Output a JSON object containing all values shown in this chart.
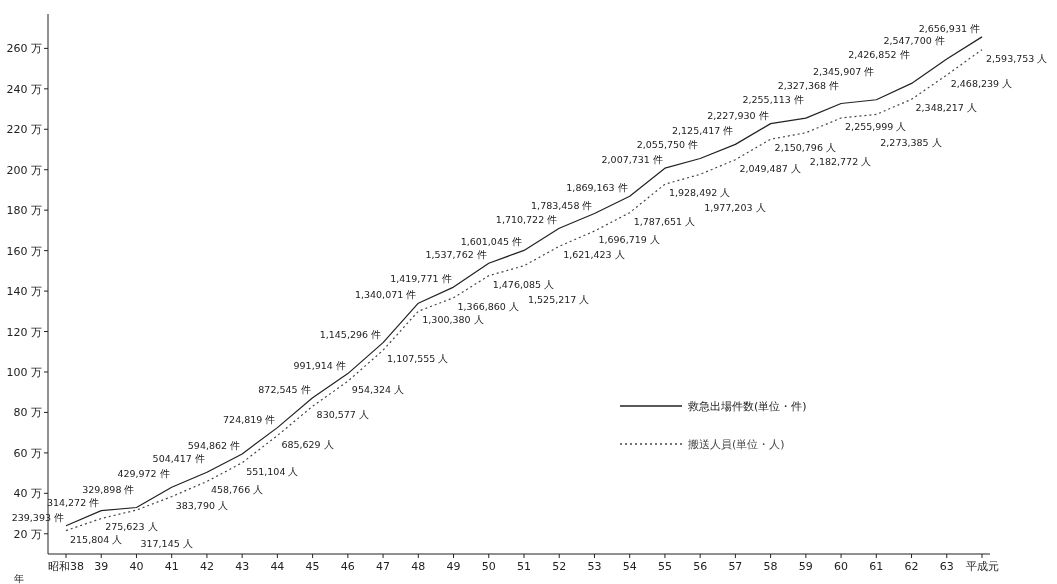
{
  "chart_data": {
    "type": "line",
    "categories": [
      "昭和38",
      "39",
      "40",
      "41",
      "42",
      "43",
      "44",
      "45",
      "46",
      "47",
      "48",
      "49",
      "50",
      "51",
      "52",
      "53",
      "54",
      "55",
      "56",
      "57",
      "58",
      "59",
      "60",
      "61",
      "62",
      "63",
      "平成元"
    ],
    "series": [
      {
        "name": "救急出場件数(単位・件)",
        "color": "#222222",
        "line_style": "solid",
        "values": [
          23.9393,
          31.4272,
          32.9898,
          42.9972,
          50.4417,
          59.4862,
          72.4819,
          87.2545,
          99.1914,
          114.5296,
          134.0071,
          141.9771,
          153.7762,
          160.1045,
          171.0722,
          178.3458,
          186.9163,
          200.7731,
          205.575,
          212.5417,
          222.793,
          225.5113,
          232.7368,
          234.5907,
          242.6852,
          254.77,
          265.6931
        ]
      },
      {
        "name": "搬送人員(単位・人)",
        "color": "#444444",
        "line_style": "dotted",
        "values": [
          21.5804,
          27.5623,
          31.7145,
          38.379,
          45.8766,
          55.1104,
          68.5629,
          83.0577,
          95.4324,
          110.7555,
          130.038,
          136.686,
          147.6085,
          152.5217,
          162.1423,
          169.6719,
          178.7651,
          192.8492,
          197.7203,
          204.9487,
          215.0796,
          218.2772,
          225.5999,
          227.3385,
          234.8217,
          246.8239,
          259.3753
        ]
      }
    ],
    "ylim": [
      10,
      277
    ],
    "yticks": [
      {
        "value": 20,
        "label": "20 万"
      },
      {
        "value": 40,
        "label": "40 万"
      },
      {
        "value": 60,
        "label": "60 万"
      },
      {
        "value": 80,
        "label": "80 万"
      },
      {
        "value": 100,
        "label": "100 万"
      },
      {
        "value": 120,
        "label": "120 万"
      },
      {
        "value": 140,
        "label": "140 万"
      },
      {
        "value": 160,
        "label": "160 万"
      },
      {
        "value": 180,
        "label": "180 万"
      },
      {
        "value": 200,
        "label": "200 万"
      },
      {
        "value": 220,
        "label": "220 万"
      },
      {
        "value": 240,
        "label": "240 万"
      },
      {
        "value": 260,
        "label": "260 万"
      }
    ],
    "grid": false,
    "legend": "right",
    "marker": "none",
    "annotations": [
      {
        "text": "239,393 件",
        "x": "昭和38",
        "y": 23.9393
      },
      {
        "text": "314,272 件",
        "x": "39",
        "y": 31.4272
      },
      {
        "text": "329,898 件",
        "x": "40",
        "y": 32.9898
      },
      {
        "text": "429,972 件",
        "x": "41",
        "y": 42.9972
      },
      {
        "text": "504,417 件",
        "x": "42",
        "y": 50.4417
      },
      {
        "text": "594,862 件",
        "x": "43",
        "y": 59.4862
      },
      {
        "text": "724,819 件",
        "x": "44",
        "y": 72.4819
      },
      {
        "text": "872,545 件",
        "x": "45",
        "y": 87.2545
      },
      {
        "text": "991,914 件",
        "x": "46",
        "y": 99.1914
      },
      {
        "text": "1,145,296 件",
        "x": "47",
        "y": 114.5296
      },
      {
        "text": "1,340,071 件",
        "x": "48",
        "y": 134.0071
      },
      {
        "text": "1,419,771 件",
        "x": "49",
        "y": 141.9771
      },
      {
        "text": "1,537,762 件",
        "x": "50",
        "y": 153.7762
      },
      {
        "text": "1,601,045 件",
        "x": "51",
        "y": 160.1045
      },
      {
        "text": "1,710,722 件",
        "x": "52",
        "y": 171.0722
      },
      {
        "text": "1,783,458 件",
        "x": "53",
        "y": 178.3458
      },
      {
        "text": "1,869,163 件",
        "x": "54",
        "y": 186.9163
      },
      {
        "text": "2,007,731 件",
        "x": "55",
        "y": 200.7731
      },
      {
        "text": "2,055,750 件",
        "x": "56",
        "y": 205.575
      },
      {
        "text": "2,125,417 件",
        "x": "57",
        "y": 212.5417
      },
      {
        "text": "2,227,930 件",
        "x": "58",
        "y": 222.793
      },
      {
        "text": "2,255,113 件",
        "x": "59",
        "y": 225.5113
      },
      {
        "text": "2,327,368 件",
        "x": "60",
        "y": 232.7368
      },
      {
        "text": "2,345,907 件",
        "x": "61",
        "y": 234.5907
      },
      {
        "text": "2,426,852 件",
        "x": "62",
        "y": 242.6852
      },
      {
        "text": "2,547,700 件",
        "x": "63",
        "y": 254.77
      },
      {
        "text": "2,656,931 件",
        "x": "平成元",
        "y": 265.6931
      },
      {
        "text": "215,804 人",
        "x": "昭和38",
        "y": 21.5804
      },
      {
        "text": "275,623 人",
        "x": "39",
        "y": 27.5623
      },
      {
        "text": "317,145 人",
        "x": "40",
        "y": 31.7145
      },
      {
        "text": "383,790 人",
        "x": "41",
        "y": 38.379
      },
      {
        "text": "458,766 人",
        "x": "42",
        "y": 45.8766
      },
      {
        "text": "551,104 人",
        "x": "43",
        "y": 55.1104
      },
      {
        "text": "685,629 人",
        "x": "44",
        "y": 68.5629
      },
      {
        "text": "830,577 人",
        "x": "45",
        "y": 83.0577
      },
      {
        "text": "954,324 人",
        "x": "46",
        "y": 95.4324
      },
      {
        "text": "1,107,555 人",
        "x": "47",
        "y": 110.7555
      },
      {
        "text": "1,300,380 人",
        "x": "48",
        "y": 130.038
      },
      {
        "text": "1,366,860 人",
        "x": "49",
        "y": 136.686
      },
      {
        "text": "1,476,085 人",
        "x": "50",
        "y": 147.6085
      },
      {
        "text": "1,525,217 人",
        "x": "51",
        "y": 152.5217
      },
      {
        "text": "1,621,423 人",
        "x": "52",
        "y": 162.1423
      },
      {
        "text": "1,696,719 人",
        "x": "53",
        "y": 169.6719
      },
      {
        "text": "1,787,651 人",
        "x": "54",
        "y": 178.7651
      },
      {
        "text": "1,928,492 人",
        "x": "55",
        "y": 192.8492
      },
      {
        "text": "1,977,203 人",
        "x": "56",
        "y": 197.7203
      },
      {
        "text": "2,049,487 人",
        "x": "57",
        "y": 204.9487
      },
      {
        "text": "2,150,796 人",
        "x": "58",
        "y": 215.0796
      },
      {
        "text": "2,182,772 人",
        "x": "59",
        "y": 218.2772
      },
      {
        "text": "2,255,999 人",
        "x": "60",
        "y": 225.5999
      },
      {
        "text": "2,273,385 人",
        "x": "61",
        "y": 227.3385
      },
      {
        "text": "2,348,217 人",
        "x": "62",
        "y": 234.8217
      },
      {
        "text": "2,468,239 人",
        "x": "63",
        "y": 246.8239
      },
      {
        "text": "2,593,753 人",
        "x": "平成元",
        "y": 259.3753
      },
      "年"
    ]
  }
}
